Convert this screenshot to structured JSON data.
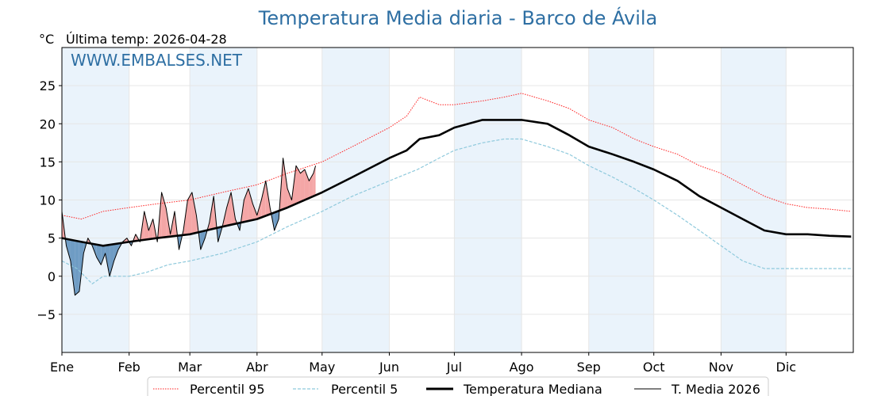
{
  "chart_data": {
    "type": "line",
    "title": "Temperatura Media diaria - Barco de Ávila",
    "unit_label": "°C",
    "subtitle": "Última temp: 2026-04-28",
    "watermark": "WWW.EMBALSES.NET",
    "ylim": [
      -10,
      30
    ],
    "y_ticks": [
      25,
      20,
      15,
      10,
      5,
      0,
      -5
    ],
    "y_tick_labels": [
      "25",
      "20",
      "15",
      "10",
      "5",
      "0",
      "−5"
    ],
    "x_range": [
      1,
      365
    ],
    "x_ticks": [
      {
        "label": "Ene",
        "day": 1
      },
      {
        "label": "Feb",
        "day": 32
      },
      {
        "label": "Mar",
        "day": 60
      },
      {
        "label": "Abr",
        "day": 91
      },
      {
        "label": "May",
        "day": 121
      },
      {
        "label": "Jun",
        "day": 152
      },
      {
        "label": "Jul",
        "day": 182
      },
      {
        "label": "Ago",
        "day": 213
      },
      {
        "label": "Sep",
        "day": 244
      },
      {
        "label": "Oct",
        "day": 274
      },
      {
        "label": "Nov",
        "day": 305
      },
      {
        "label": "Dic",
        "day": 335
      }
    ],
    "shaded_month_bands": [
      [
        1,
        32
      ],
      [
        60,
        91
      ],
      [
        121,
        152
      ],
      [
        182,
        213
      ],
      [
        244,
        274
      ],
      [
        305,
        335
      ]
    ],
    "grid": true,
    "legend_position": "bottom",
    "colors": {
      "p95": "#ff2020",
      "p5": "#8ec9dc",
      "median": "#000000",
      "current": "#000000",
      "above_fill": "#f4a6a6",
      "below_fill": "#6f9cc4",
      "band": "#eaf3fb"
    },
    "series": [
      {
        "name": "Percentil 95",
        "style": "dotted",
        "x": [
          1,
          10,
          20,
          32,
          45,
          60,
          75,
          91,
          105,
          121,
          135,
          152,
          160,
          166,
          175,
          182,
          195,
          205,
          213,
          225,
          235,
          244,
          255,
          265,
          274,
          285,
          295,
          305,
          315,
          325,
          335,
          345,
          355,
          365
        ],
        "y": [
          8.0,
          7.5,
          8.5,
          9.0,
          9.5,
          10.0,
          11.0,
          12.0,
          13.5,
          15.0,
          17.0,
          19.5,
          21.0,
          23.5,
          22.5,
          22.5,
          23.0,
          23.5,
          24.0,
          23.0,
          22.0,
          20.5,
          19.5,
          18.0,
          17.0,
          16.0,
          14.5,
          13.5,
          12.0,
          10.5,
          9.5,
          9.0,
          8.8,
          8.5
        ]
      },
      {
        "name": "Percentil 5",
        "style": "dashed",
        "x": [
          1,
          8,
          15,
          20,
          32,
          40,
          50,
          60,
          75,
          91,
          105,
          121,
          135,
          152,
          165,
          175,
          182,
          195,
          205,
          213,
          225,
          235,
          244,
          255,
          265,
          274,
          285,
          295,
          305,
          315,
          325,
          335,
          345,
          355,
          365
        ],
        "y": [
          2.0,
          1.0,
          -1.0,
          0.0,
          0.0,
          0.5,
          1.5,
          2.0,
          3.0,
          4.5,
          6.5,
          8.5,
          10.5,
          12.5,
          14.0,
          15.5,
          16.5,
          17.5,
          18.0,
          18.0,
          17.0,
          16.0,
          14.5,
          13.0,
          11.5,
          10.0,
          8.0,
          6.0,
          4.0,
          2.0,
          1.0,
          1.0,
          1.0,
          1.0,
          1.0
        ]
      },
      {
        "name": "Temperatura Mediana",
        "style": "solid-thick",
        "x": [
          1,
          10,
          20,
          32,
          45,
          60,
          75,
          91,
          105,
          121,
          135,
          152,
          160,
          166,
          175,
          182,
          195,
          205,
          213,
          225,
          235,
          244,
          255,
          265,
          274,
          285,
          295,
          305,
          315,
          325,
          335,
          345,
          355,
          365
        ],
        "y": [
          5.0,
          4.5,
          4.0,
          4.5,
          5.0,
          5.5,
          6.5,
          7.5,
          9.0,
          11.0,
          13.0,
          15.5,
          16.5,
          18.0,
          18.5,
          19.5,
          20.5,
          20.5,
          20.5,
          20.0,
          18.5,
          17.0,
          16.0,
          15.0,
          14.0,
          12.5,
          10.5,
          9.0,
          7.5,
          6.0,
          5.5,
          5.5,
          5.3,
          5.2
        ]
      },
      {
        "name": "T. Media 2026",
        "style": "solid-thin",
        "x": [
          1,
          3,
          5,
          7,
          9,
          11,
          13,
          15,
          17,
          19,
          21,
          23,
          25,
          27,
          29,
          31,
          33,
          35,
          37,
          39,
          41,
          43,
          45,
          47,
          49,
          51,
          53,
          55,
          57,
          59,
          61,
          63,
          65,
          67,
          69,
          71,
          73,
          75,
          77,
          79,
          81,
          83,
          85,
          87,
          89,
          91,
          93,
          95,
          97,
          99,
          101,
          103,
          105,
          107,
          109,
          111,
          113,
          115,
          117,
          118
        ],
        "y": [
          8.5,
          4.0,
          2.0,
          -2.5,
          -2.0,
          3.0,
          5.0,
          4.0,
          2.5,
          1.5,
          3.0,
          0.0,
          2.0,
          3.5,
          4.5,
          5.0,
          4.0,
          5.5,
          4.5,
          8.5,
          6.0,
          7.5,
          4.5,
          11.0,
          9.0,
          5.5,
          8.5,
          3.5,
          6.0,
          10.0,
          11.0,
          8.0,
          3.5,
          5.0,
          7.0,
          10.5,
          4.5,
          6.5,
          9.0,
          11.0,
          7.5,
          6.0,
          10.0,
          11.5,
          9.5,
          8.0,
          10.0,
          12.5,
          9.0,
          6.0,
          7.5,
          15.5,
          11.5,
          10.0,
          14.5,
          13.5,
          14.0,
          12.5,
          13.5,
          14.5
        ]
      }
    ]
  }
}
